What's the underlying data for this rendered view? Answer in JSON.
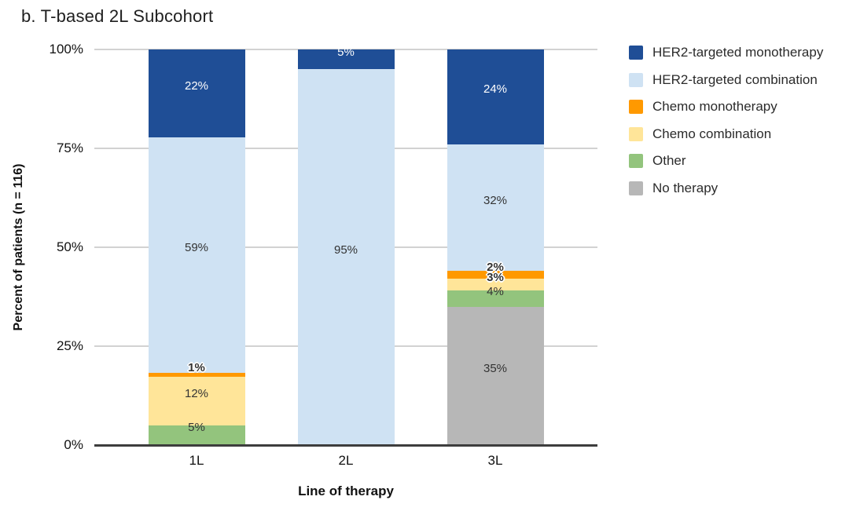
{
  "title": "b. T-based 2L Subcohort",
  "chart_data": {
    "type": "bar",
    "stacked": true,
    "percent_scale": true,
    "title": "b. T-based 2L Subcohort",
    "xlabel": "Line of therapy",
    "ylabel": "Percent of patients (n = 116)",
    "categories": [
      "1L",
      "2L",
      "3L"
    ],
    "series": [
      {
        "name": "HER2-targeted monotherapy",
        "color": "#1f4e96",
        "label_color": "#ffffff",
        "values": [
          22,
          5,
          24
        ]
      },
      {
        "name": "HER2-targeted combination",
        "color": "#cfe2f3",
        "label_color": "#333333",
        "values": [
          59,
          95,
          32
        ]
      },
      {
        "name": "Chemo monotherapy",
        "color": "#ff9900",
        "label_color": "#333333",
        "values": [
          1,
          0,
          2
        ]
      },
      {
        "name": "Chemo combination",
        "color": "#ffe599",
        "label_color": "#333333",
        "values": [
          12,
          0,
          3
        ]
      },
      {
        "name": "Other",
        "color": "#93c47d",
        "label_color": "#333333",
        "values": [
          5,
          0,
          4
        ]
      },
      {
        "name": "No therapy",
        "color": "#b7b7b7",
        "label_color": "#333333",
        "values": [
          0,
          0,
          35
        ]
      }
    ],
    "stack_order_bottom_to_top": [
      "No therapy",
      "Other",
      "Chemo combination",
      "Chemo monotherapy",
      "HER2-targeted combination",
      "HER2-targeted monotherapy"
    ],
    "data_label_format": "{value}%",
    "y_tick_labels": [
      "0%",
      "25%",
      "50%",
      "75%",
      "100%"
    ],
    "ylim": [
      0,
      100
    ],
    "grid": true,
    "legend_position": "right",
    "colors": {
      "gridline": "#d2d2d2",
      "baseline": "#3d3d3d",
      "background": "#ffffff"
    }
  }
}
